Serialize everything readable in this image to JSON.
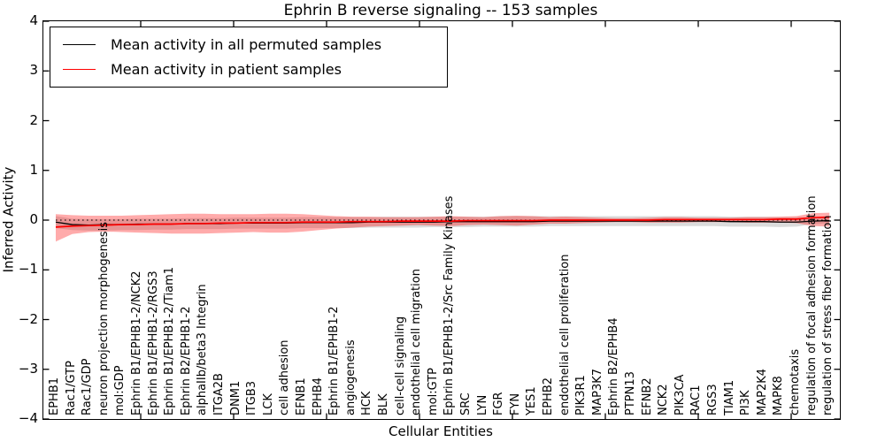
{
  "figure": {
    "title": "Ephrin B reverse signaling -- 153 samples",
    "xlabel": "Cellular Entities",
    "ylabel": "Inferred Activity",
    "legend": [
      {
        "label": "Mean activity in all permuted samples",
        "color": "#000000"
      },
      {
        "label": "Mean activity in patient samples",
        "color": "#ff0000"
      }
    ]
  },
  "chart_data": {
    "type": "line",
    "title": "Ephrin B reverse signaling -- 153 samples",
    "xlabel": "Cellular Entities",
    "ylabel": "Inferred Activity",
    "ylim": [
      -4,
      4
    ],
    "yticks": [
      4,
      3,
      2,
      1,
      0,
      -1,
      -2,
      -3,
      -4
    ],
    "grid": false,
    "legend_position": "upper left",
    "zero_reference_line": "dotted",
    "categories": [
      "EPHB1",
      "Rac1/GTP",
      "Rac1/GDP",
      "neuron projection morphogenesis",
      "mol:GDP",
      "Ephrin B1/EPHB1-2/NCK2",
      "Ephrin B1/EPHB1-2/RGS3",
      "Ephrin B1/EPHB1-2/Tiam1",
      "Ephrin B2/EPHB1-2",
      "alphaIIb/beta3 Integrin",
      "ITGA2B",
      "DNM1",
      "ITGB3",
      "LCK",
      "cell adhesion",
      "EFNB1",
      "EPHB4",
      "Ephrin B1/EPHB1-2",
      "angiogenesis",
      "HCK",
      "BLK",
      "cell-cell signaling",
      "endothelial cell migration",
      "mol:GTP",
      "Ephrin B1/EPHB1-2/Src Family Kinases",
      "SRC",
      "LYN",
      "FGR",
      "FYN",
      "YES1",
      "EPHB2",
      "endothelial cell proliferation",
      "PIK3R1",
      "MAP3K7",
      "Ephrin B2/EPHB4",
      "PTPN13",
      "EFNB2",
      "NCK2",
      "PIK3CA",
      "RAC1",
      "RGS3",
      "TIAM1",
      "PI3K",
      "MAP2K4",
      "MAPK8",
      "chemotaxis",
      "regulation of focal adhesion formation",
      "regulation of stress fiber formation"
    ],
    "series": [
      {
        "name": "Mean activity in all permuted samples",
        "color": "#000000",
        "width": 1.3,
        "values": [
          -0.04,
          -0.09,
          -0.1,
          -0.09,
          -0.09,
          -0.08,
          -0.08,
          -0.08,
          -0.07,
          -0.07,
          -0.07,
          -0.06,
          -0.06,
          -0.06,
          -0.06,
          -0.05,
          -0.05,
          -0.05,
          -0.05,
          -0.04,
          -0.04,
          -0.04,
          -0.04,
          -0.04,
          -0.03,
          -0.03,
          -0.03,
          -0.03,
          -0.03,
          -0.03,
          -0.02,
          -0.02,
          -0.02,
          -0.02,
          -0.02,
          -0.02,
          -0.02,
          -0.02,
          -0.02,
          -0.02,
          -0.02,
          -0.03,
          -0.03,
          -0.03,
          -0.04,
          -0.04,
          -0.02,
          -0.01
        ]
      },
      {
        "name": "Mean activity in patient samples",
        "color": "#ff0000",
        "width": 1.7,
        "values": [
          -0.14,
          -0.12,
          -0.11,
          -0.1,
          -0.09,
          -0.09,
          -0.08,
          -0.08,
          -0.07,
          -0.07,
          -0.06,
          -0.06,
          -0.05,
          -0.05,
          -0.05,
          -0.04,
          -0.04,
          -0.04,
          -0.03,
          -0.03,
          -0.03,
          -0.02,
          -0.02,
          -0.02,
          -0.02,
          -0.01,
          -0.01,
          -0.01,
          -0.01,
          -0.01,
          0.0,
          0.0,
          0.0,
          0.0,
          0.0,
          0.0,
          0.0,
          0.01,
          0.01,
          0.01,
          0.01,
          0.01,
          0.01,
          0.01,
          0.02,
          0.02,
          0.05,
          0.06
        ]
      }
    ],
    "bands": [
      {
        "name": "permuted-range",
        "color": "#000000",
        "alpha": 0.14,
        "upper": [
          0.08,
          0.03,
          0.02,
          0.02,
          0.02,
          0.03,
          0.03,
          0.03,
          0.04,
          0.04,
          0.04,
          0.05,
          0.05,
          0.05,
          0.05,
          0.06,
          0.06,
          0.06,
          0.06,
          0.06,
          0.07,
          0.07,
          0.07,
          0.07,
          0.07,
          0.07,
          0.07,
          0.08,
          0.08,
          0.08,
          0.08,
          0.08,
          0.08,
          0.08,
          0.08,
          0.08,
          0.08,
          0.08,
          0.08,
          0.08,
          0.08,
          0.07,
          0.07,
          0.07,
          0.06,
          0.06,
          0.05,
          0.05
        ],
        "lower": [
          -0.16,
          -0.2,
          -0.21,
          -0.21,
          -0.2,
          -0.2,
          -0.19,
          -0.19,
          -0.18,
          -0.18,
          -0.18,
          -0.17,
          -0.17,
          -0.17,
          -0.17,
          -0.16,
          -0.16,
          -0.16,
          -0.16,
          -0.15,
          -0.15,
          -0.15,
          -0.15,
          -0.14,
          -0.14,
          -0.14,
          -0.13,
          -0.13,
          -0.13,
          -0.13,
          -0.12,
          -0.12,
          -0.12,
          -0.12,
          -0.12,
          -0.12,
          -0.12,
          -0.12,
          -0.12,
          -0.12,
          -0.12,
          -0.13,
          -0.13,
          -0.13,
          -0.14,
          -0.13,
          -0.08,
          -0.07
        ]
      },
      {
        "name": "patient-range",
        "color": "#ff0000",
        "alpha": 0.33,
        "upper": [
          0.12,
          0.1,
          0.09,
          0.09,
          0.09,
          0.1,
          0.11,
          0.12,
          0.13,
          0.13,
          0.12,
          0.12,
          0.12,
          0.13,
          0.13,
          0.12,
          0.1,
          0.08,
          0.07,
          0.07,
          0.06,
          0.06,
          0.06,
          0.07,
          0.08,
          0.07,
          0.06,
          0.08,
          0.09,
          0.08,
          0.06,
          0.07,
          0.06,
          0.05,
          0.04,
          0.04,
          0.05,
          0.06,
          0.06,
          0.05,
          0.05,
          0.05,
          0.06,
          0.06,
          0.07,
          0.08,
          0.14,
          0.15
        ],
        "lower": [
          -0.43,
          -0.28,
          -0.24,
          -0.23,
          -0.24,
          -0.25,
          -0.26,
          -0.27,
          -0.27,
          -0.27,
          -0.26,
          -0.25,
          -0.24,
          -0.25,
          -0.25,
          -0.23,
          -0.2,
          -0.17,
          -0.15,
          -0.13,
          -0.12,
          -0.11,
          -0.1,
          -0.11,
          -0.12,
          -0.1,
          -0.09,
          -0.1,
          -0.11,
          -0.09,
          -0.07,
          -0.07,
          -0.06,
          -0.05,
          -0.04,
          -0.04,
          -0.05,
          -0.05,
          -0.05,
          -0.04,
          -0.04,
          -0.04,
          -0.05,
          -0.05,
          -0.05,
          -0.06,
          -0.12,
          -0.13
        ]
      }
    ]
  }
}
